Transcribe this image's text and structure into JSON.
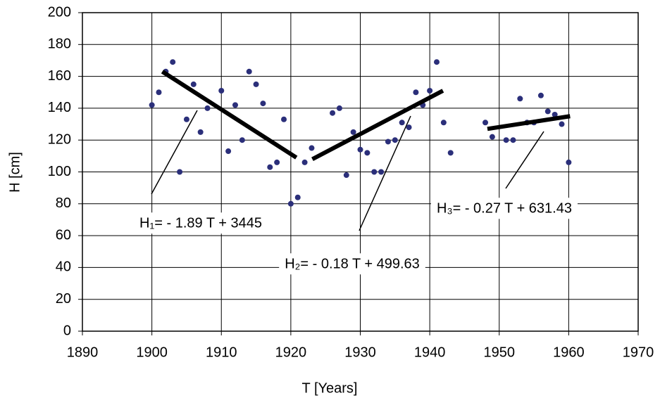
{
  "chart_data": {
    "type": "scatter",
    "x_label": "T [Years]",
    "y_label": "H [cm]",
    "x": [
      1900,
      1901,
      1902,
      1903,
      1904,
      1905,
      1906,
      1907,
      1908,
      1910,
      1911,
      1912,
      1913,
      1914,
      1915,
      1916,
      1917,
      1918,
      1919,
      1920,
      1921,
      1922,
      1923,
      1926,
      1927,
      1928,
      1929,
      1930,
      1931,
      1932,
      1933,
      1934,
      1935,
      1936,
      1937,
      1938,
      1939,
      1940,
      1941,
      1942,
      1943,
      1948,
      1949,
      1951,
      1952,
      1953,
      1954,
      1955,
      1956,
      1957,
      1958,
      1959,
      1960
    ],
    "values": [
      142,
      150,
      163,
      169,
      100,
      133,
      155,
      125,
      140,
      151,
      113,
      142,
      120,
      163,
      155,
      143,
      103,
      106,
      133,
      80,
      84,
      106,
      115,
      137,
      140,
      98,
      125,
      114,
      112,
      100,
      100,
      119,
      120,
      131,
      128,
      150,
      142,
      151,
      169,
      131,
      112,
      131,
      122,
      120,
      120,
      146,
      131,
      131,
      148,
      138,
      136,
      130,
      106
    ],
    "color": "#2b2f7a",
    "trend_lines": [
      {
        "x": [
          1901.5,
          1920.8
        ],
        "values": [
          163,
          109
        ],
        "label": "H₁= - 1.89 T + 3445"
      },
      {
        "x": [
          1923.1,
          1941.9
        ],
        "values": [
          108,
          151
        ],
        "label": "H₂= - 0.18 T + 499.63"
      },
      {
        "x": [
          1948.3,
          1960.2
        ],
        "values": [
          127,
          135
        ],
        "label": "H₃= - 0.27 T + 631.43"
      }
    ],
    "trend_color": "#000000",
    "xlim": [
      1890,
      1970
    ],
    "xticks": [
      1890,
      1900,
      1910,
      1920,
      1930,
      1940,
      1950,
      1960,
      1970
    ],
    "ylim": [
      0,
      200
    ],
    "yticks": [
      0,
      20,
      40,
      60,
      80,
      100,
      120,
      140,
      160,
      180,
      200
    ],
    "grid": true
  }
}
